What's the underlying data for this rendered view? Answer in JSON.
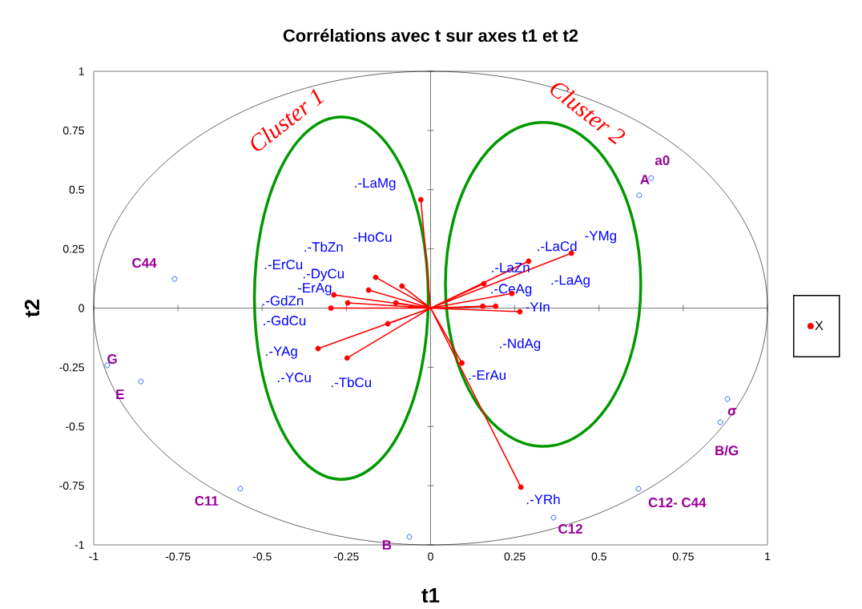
{
  "chart_data": {
    "type": "scatter",
    "title": "Corrélations avec t sur axes t1 et t2",
    "xlabel": "t1",
    "ylabel": "t2",
    "xlim": [
      -1,
      1
    ],
    "ylim": [
      -1,
      1
    ],
    "xticks": [
      -1,
      -0.75,
      -0.5,
      -0.25,
      0,
      0.25,
      0.5,
      0.75,
      1
    ],
    "yticks": [
      -1,
      -0.75,
      -0.5,
      -0.25,
      0,
      0.25,
      0.5,
      0.75,
      1
    ],
    "legend": "right",
    "series": [
      {
        "type": "line",
        "color": "#ff0000",
        "marker": "none",
        "x": [
          0,
          -0.029,
          0,
          -0.163,
          0,
          -0.085,
          0,
          -0.184,
          0,
          -0.287,
          0,
          -0.246,
          0,
          -0.103,
          0,
          -0.296,
          0,
          -0.127,
          0,
          -0.334,
          0,
          -0.248,
          0,
          0.418,
          0,
          0.291,
          0,
          0.158,
          0,
          0.241,
          0,
          0.155,
          0,
          0.193,
          0,
          0.265,
          0,
          0.093,
          0,
          0.268
        ],
        "values": [
          0,
          0.458,
          0,
          0.13,
          0,
          0.093,
          0,
          0.076,
          0,
          0.056,
          0,
          0.022,
          0,
          0.022,
          0,
          0,
          0,
          -0.066,
          0,
          -0.171,
          0,
          -0.211,
          0,
          0.232,
          0,
          0.198,
          0,
          0.103,
          0,
          0.062,
          0,
          0.008,
          0,
          0.008,
          0,
          -0.015,
          0,
          -0.232,
          0,
          -0.756
        ]
      },
      {
        "name": "X",
        "color": "#ff0000",
        "marker": "circle",
        "x": [
          -0.029,
          -0.163,
          -0.085,
          -0.184,
          -0.287,
          -0.246,
          -0.103,
          -0.296,
          -0.127,
          -0.334,
          -0.248,
          0.418,
          0.291,
          0.158,
          0.241,
          0.155,
          0.193,
          0.265,
          0.093,
          0.268
        ],
        "values": [
          0.458,
          0.13,
          0.093,
          0.076,
          0.056,
          0.022,
          0.022,
          0,
          -0.066,
          -0.171,
          -0.211,
          0.232,
          0.198,
          0.103,
          0.062,
          0.008,
          0.008,
          -0.015,
          -0.232,
          -0.756
        ]
      },
      {
        "color": "#3366ff",
        "marker": "circle",
        "x": [
          0.655,
          0.619,
          0.881,
          0.86,
          0.617,
          0.365,
          -0.063,
          -0.76,
          -0.96,
          -0.86,
          -0.565
        ],
        "values": [
          0.549,
          0.476,
          -0.384,
          -0.482,
          -0.763,
          -0.885,
          -0.966,
          0.123,
          -0.242,
          -0.31,
          -0.763
        ]
      }
    ],
    "annotations": [
      ".-LaMg",
      "-HoCu",
      ".-TbZn",
      ".-ErCu",
      ".-DyCu",
      "-ErAg",
      ".-GdZn",
      ".-GdCu",
      ".-YAg",
      ".-YCu",
      ".-TbCu",
      ".-LaCd",
      "-YMg",
      ".-LaZn",
      ".-CeAg",
      ".-LaAg",
      "-YIn",
      ".-NdAg",
      ".-ErAu",
      ".-YRh",
      "a0",
      "A",
      "σ",
      "B/G",
      "C12- C44",
      "C12",
      "B",
      "C44",
      "G",
      "E",
      "C11",
      "Cluster 1",
      "Cluster 2"
    ]
  }
}
